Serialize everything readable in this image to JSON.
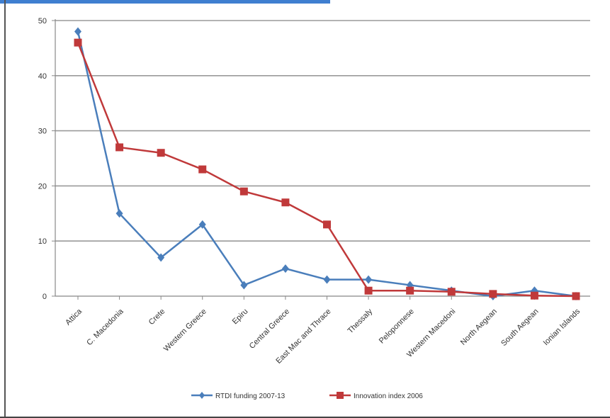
{
  "chart_data": {
    "type": "line",
    "categories": [
      "Attica",
      "C. Macedonia",
      "Crete",
      "Western Greece",
      "Epiru",
      "Central Greece",
      "East Mac and Thrace",
      "Thessaly",
      "Peloponnese",
      "Western Macedoni",
      "North Aegean",
      "South Aegean",
      "Ionian Islands"
    ],
    "series": [
      {
        "name": "RTDI funding 2007-13",
        "color": "#4a7ebb",
        "marker": "diamond",
        "values": [
          48,
          15,
          7,
          13,
          2,
          5,
          3,
          3,
          2,
          1,
          0,
          1,
          0
        ]
      },
      {
        "name": "Innovation index 2006",
        "color": "#c0393a",
        "marker": "square",
        "values": [
          46,
          27,
          26,
          23,
          19,
          17,
          13,
          1,
          1,
          0.8,
          0.4,
          0.1,
          0
        ]
      }
    ],
    "ylim": [
      0,
      50
    ],
    "yticks": [
      0,
      10,
      20,
      30,
      40,
      50
    ],
    "grid": true,
    "legend_position": "bottom",
    "title": "",
    "xlabel": "",
    "ylabel": ""
  }
}
